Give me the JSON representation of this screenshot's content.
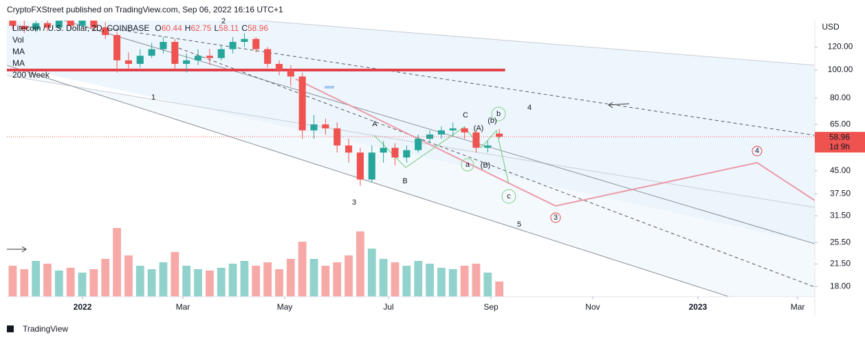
{
  "header": "CryptoFXStreet published on TradingView.com, Sep 06, 2022 16:16 UTC+1",
  "footer": "TradingView",
  "chart_data": {
    "type": "candlestick",
    "symbol": "Litecoin / U.S. Dollar, 2D, COINBASE",
    "ohlc": [
      {
        "key": "O",
        "value": 60.44
      },
      {
        "key": "H",
        "value": 62.75
      },
      {
        "key": "L",
        "value": 58.11
      },
      {
        "key": "C",
        "value": 58.96
      }
    ],
    "indicators": [
      "Vol",
      "MA",
      "MA",
      "200 Week"
    ],
    "currency": "USD",
    "log_scale": true,
    "up_color": "#26a69a",
    "down_color": "#ef5350",
    "ma200_week": 100,
    "ma200_color": "#e0404a",
    "last_price": 58.96,
    "countdown": "1d 9h",
    "categories": [
      null,
      null,
      null,
      null,
      null,
      null,
      null,
      null,
      null,
      null,
      null,
      null,
      null,
      null,
      null,
      null,
      null,
      null,
      null,
      null,
      null,
      null,
      null,
      null,
      null,
      null,
      null,
      null,
      null,
      null,
      null,
      null,
      null,
      null,
      null,
      null,
      null,
      null,
      null,
      null,
      null,
      null,
      null
    ],
    "open": [
      148,
      142,
      138,
      145,
      140,
      148,
      142,
      150,
      140,
      132,
      108,
      105,
      112,
      118,
      125,
      105,
      108,
      112,
      110,
      118,
      125,
      128,
      118,
      105,
      100,
      95,
      62,
      65,
      63,
      55,
      52,
      42,
      52,
      54,
      50,
      53,
      58,
      60,
      62,
      63,
      61,
      54,
      60.44
    ],
    "high": [
      152,
      150,
      149,
      150,
      155,
      152,
      156,
      154,
      146,
      135,
      115,
      118,
      124,
      130,
      128,
      114,
      118,
      118,
      122,
      130,
      134,
      130,
      120,
      108,
      104,
      98,
      70,
      68,
      66,
      58,
      54,
      55,
      57,
      56,
      55,
      60,
      62,
      64,
      66,
      64,
      62,
      57,
      62.75
    ],
    "low": [
      138,
      134,
      135,
      136,
      138,
      138,
      140,
      136,
      128,
      98,
      100,
      102,
      110,
      114,
      100,
      98,
      104,
      104,
      108,
      114,
      120,
      115,
      102,
      96,
      88,
      58,
      58,
      60,
      52,
      48,
      40,
      41,
      48,
      47,
      48,
      52,
      56,
      58,
      59,
      58,
      52,
      52,
      58.11
    ],
    "close": [
      142,
      138,
      145,
      140,
      148,
      142,
      150,
      140,
      132,
      108,
      105,
      112,
      118,
      125,
      105,
      108,
      112,
      110,
      118,
      125,
      128,
      118,
      105,
      100,
      95,
      62,
      65,
      63,
      55,
      52,
      42,
      52,
      54,
      50,
      53,
      58,
      60,
      62,
      63,
      61,
      54,
      55,
      58.96
    ],
    "volume": [
      45,
      40,
      52,
      48,
      38,
      42,
      35,
      40,
      55,
      100,
      60,
      45,
      40,
      50,
      65,
      45,
      40,
      38,
      42,
      48,
      52,
      45,
      50,
      40,
      55,
      80,
      55,
      45,
      50,
      60,
      95,
      70,
      55,
      50,
      45,
      52,
      48,
      42,
      40,
      45,
      48,
      35,
      22
    ],
    "vlim": [
      0,
      110
    ],
    "xlim": [
      -0.5,
      69.23
    ],
    "xticks": [
      {
        "value": 6.03,
        "label": "2022"
      },
      {
        "value": 14.69,
        "label": "Mar"
      },
      {
        "value": 23.48,
        "label": "May"
      },
      {
        "value": 32.44,
        "label": "Jul"
      },
      {
        "value": 41.28,
        "label": "Sep"
      },
      {
        "value": 50.06,
        "label": "Nov"
      },
      {
        "value": 59.14,
        "label": "2023"
      },
      {
        "value": 67.75,
        "label": "Mar"
      }
    ],
    "ylim": [
      16.6,
      148
    ],
    "yticks": [
      {
        "value": 120,
        "label": "120.00"
      },
      {
        "value": 100,
        "label": "100.00"
      },
      {
        "value": 80,
        "label": "80.00"
      },
      {
        "value": 65,
        "label": "65.00"
      },
      {
        "value": 45,
        "label": "45.00"
      },
      {
        "value": 37.5,
        "label": "37.50"
      },
      {
        "value": 31.5,
        "label": "31.50"
      },
      {
        "value": 25.5,
        "label": "25.50"
      },
      {
        "value": 21.5,
        "label": "21.50"
      },
      {
        "value": 18,
        "label": "18.00"
      }
    ],
    "wave_labels": [
      "1",
      "2",
      "3",
      "4",
      "5",
      "A",
      "B",
      "C",
      "(A)",
      "(B)",
      "a",
      "b",
      "(b)",
      "c",
      "3",
      "4"
    ]
  }
}
